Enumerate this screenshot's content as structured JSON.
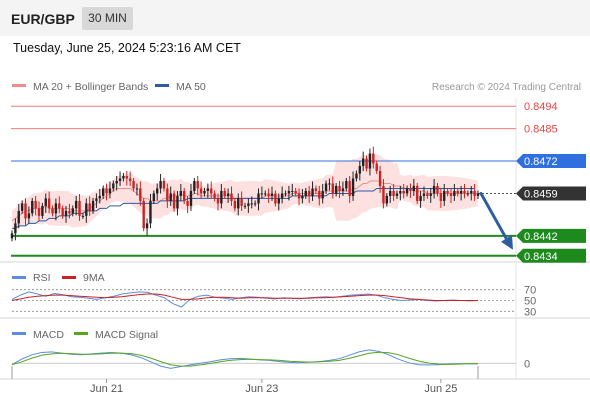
{
  "header": {
    "symbol": "EUR/GBP",
    "interval": "30 MIN"
  },
  "timestamp": "Tuesday, June 25, 2024 5:23:16 AM CET",
  "source": "Research © 2024 Trading Central",
  "colors": {
    "ma20": "#f08c8c",
    "ma50": "#2d5aa0",
    "bollinger": "#fde0e0",
    "resistance": "#ee4444",
    "pivot": "#2f6fe0",
    "support": "#1e8a1e",
    "last_price": "#333333",
    "candle_up": "#222222",
    "candle_down": "#cc2222",
    "rsi": "#5b8de0",
    "rsi_ma": "#cc2222",
    "macd": "#5b8de0",
    "macd_signal": "#56a520",
    "arrow": "#2d5fa0"
  },
  "chart_data": [
    {
      "type": "line",
      "panel": "price",
      "legend_position": "top-left",
      "legend": [
        {
          "label": "MA 20 + Bollinger Bands",
          "color": "#f08c8c"
        },
        {
          "label": "MA 50",
          "color": "#2d5aa0"
        }
      ],
      "x_ticks": [
        "Jun 21",
        "Jun 23",
        "Jun 25"
      ],
      "x_tick_index": [
        28,
        74,
        127
      ],
      "ylim": [
        0.84315,
        0.84985
      ],
      "levels": [
        {
          "value": 0.8494,
          "label": "0.8494",
          "kind": "resistance"
        },
        {
          "value": 0.8485,
          "label": "0.8485",
          "kind": "resistance"
        },
        {
          "value": 0.8472,
          "label": "0.8472",
          "kind": "pivot"
        },
        {
          "value": 0.8442,
          "label": "0.8442",
          "kind": "support"
        },
        {
          "value": 0.8434,
          "label": "0.8434",
          "kind": "support"
        }
      ],
      "last_price": {
        "value": 0.8459,
        "label": "0.8459"
      },
      "forecast": {
        "from": 0.8459,
        "to": 0.8438,
        "direction": "down"
      },
      "series": [
        {
          "name": "Price",
          "values": [
            0.8443,
            0.8447,
            0.8452,
            0.8455,
            0.8449,
            0.8451,
            0.8456,
            0.8453,
            0.845,
            0.8454,
            0.8457,
            0.8453,
            0.8451,
            0.8455,
            0.8453,
            0.845,
            0.8452,
            0.8451,
            0.8453,
            0.8456,
            0.845,
            0.845,
            0.8455,
            0.8452,
            0.8456,
            0.8457,
            0.8458,
            0.8461,
            0.8459,
            0.8461,
            0.8463,
            0.8464,
            0.8465,
            0.8466,
            0.8465,
            0.8464,
            0.8461,
            0.8461,
            0.8456,
            0.8445,
            0.8447,
            0.8456,
            0.8459,
            0.8461,
            0.8464,
            0.8461,
            0.8456,
            0.8459,
            0.8453,
            0.8458,
            0.846,
            0.8456,
            0.8454,
            0.846,
            0.8464,
            0.8461,
            0.8459,
            0.846,
            0.8461,
            0.8459,
            0.8457,
            0.8455,
            0.846,
            0.8458,
            0.8459,
            0.8456,
            0.8453,
            0.8457,
            0.8454,
            0.8454,
            0.8455,
            0.8455,
            0.8455,
            0.8459,
            0.8459,
            0.8459,
            0.8458,
            0.8459,
            0.8455,
            0.8457,
            0.8459,
            0.8459,
            0.846,
            0.846,
            0.8459,
            0.8457,
            0.8458,
            0.846,
            0.8458,
            0.8461,
            0.846,
            0.8457,
            0.846,
            0.8463,
            0.8463,
            0.8459,
            0.8462,
            0.846,
            0.8461,
            0.8464,
            0.8458,
            0.8465,
            0.8467,
            0.847,
            0.8473,
            0.8469,
            0.8475,
            0.8471,
            0.8468,
            0.8462,
            0.8455,
            0.8458,
            0.846,
            0.8458,
            0.8459,
            0.846,
            0.8459,
            0.8461,
            0.846,
            0.8462,
            0.8456,
            0.8458,
            0.8459,
            0.8458,
            0.8459,
            0.8462,
            0.8459,
            0.8456,
            0.846,
            0.8459,
            0.8458,
            0.846,
            0.8459,
            0.846,
            0.8459,
            0.8459,
            0.846,
            0.8458,
            0.8459
          ],
          "color": "#222222"
        },
        {
          "name": "MA 20",
          "values": [
            0.8448,
            0.8449,
            0.845,
            0.8451,
            0.8452,
            0.8452,
            0.8453,
            0.8453,
            0.8453,
            0.8453,
            0.8454,
            0.8453,
            0.8453,
            0.8453,
            0.8453,
            0.8453,
            0.8453,
            0.8453,
            0.8452,
            0.8452,
            0.8452,
            0.8452,
            0.8452,
            0.8453,
            0.8454,
            0.8455,
            0.8456,
            0.8457,
            0.8458,
            0.8459,
            0.846,
            0.8461,
            0.8461,
            0.8461,
            0.8461,
            0.8461,
            0.846,
            0.8459,
            0.8458,
            0.8457,
            0.8457,
            0.8456,
            0.8456,
            0.8456,
            0.8456,
            0.8457,
            0.8457,
            0.8458,
            0.8458,
            0.8458,
            0.8459,
            0.8458,
            0.8458,
            0.8458,
            0.8459,
            0.8459,
            0.8458,
            0.8458,
            0.8458,
            0.8458,
            0.8458,
            0.8458,
            0.8458,
            0.8458,
            0.8458,
            0.8458,
            0.8457,
            0.8457,
            0.8457,
            0.8457,
            0.8457,
            0.8457,
            0.8457,
            0.8457,
            0.8457,
            0.8458,
            0.8458,
            0.8458,
            0.8458,
            0.8458,
            0.8458,
            0.8458,
            0.8458,
            0.8459,
            0.8459,
            0.8459,
            0.8459,
            0.8459,
            0.8459,
            0.8459,
            0.8459,
            0.8459,
            0.8459,
            0.846,
            0.846,
            0.846,
            0.846,
            0.846,
            0.846,
            0.846,
            0.846,
            0.8461,
            0.8461,
            0.8462,
            0.8463,
            0.8463,
            0.8464,
            0.8464,
            0.8464,
            0.8464,
            0.8463,
            0.8463,
            0.8463,
            0.8462,
            0.8462,
            0.8462,
            0.8461,
            0.8461,
            0.8461,
            0.846,
            0.846,
            0.846,
            0.846,
            0.8459,
            0.8459,
            0.8459,
            0.8459,
            0.8459,
            0.8459,
            0.8459,
            0.8459,
            0.8459,
            0.8459,
            0.8459,
            0.8459,
            0.8459,
            0.8459,
            0.8459,
            0.8459
          ],
          "color": "#f08c8c"
        },
        {
          "name": "MA 50",
          "values": [
            0.8445,
            0.8445,
            0.8446,
            0.8446,
            0.8446,
            0.8447,
            0.8447,
            0.8447,
            0.8448,
            0.8448,
            0.8448,
            0.8449,
            0.8449,
            0.8449,
            0.845,
            0.845,
            0.845,
            0.845,
            0.8451,
            0.8451,
            0.8451,
            0.8451,
            0.8452,
            0.8452,
            0.8452,
            0.8452,
            0.8453,
            0.8453,
            0.8453,
            0.8454,
            0.8454,
            0.8454,
            0.8454,
            0.8455,
            0.8455,
            0.8455,
            0.8455,
            0.8455,
            0.8455,
            0.8455,
            0.8455,
            0.8455,
            0.8455,
            0.8455,
            0.8456,
            0.8456,
            0.8456,
            0.8456,
            0.8456,
            0.8456,
            0.8456,
            0.8456,
            0.8457,
            0.8457,
            0.8457,
            0.8457,
            0.8457,
            0.8457,
            0.8457,
            0.8457,
            0.8457,
            0.8457,
            0.8457,
            0.8457,
            0.8457,
            0.8457,
            0.8457,
            0.8457,
            0.8457,
            0.8457,
            0.8457,
            0.8457,
            0.8457,
            0.8457,
            0.8457,
            0.8457,
            0.8457,
            0.8457,
            0.8457,
            0.8457,
            0.8457,
            0.8457,
            0.8457,
            0.8458,
            0.8458,
            0.8458,
            0.8458,
            0.8458,
            0.8458,
            0.8458,
            0.8458,
            0.8458,
            0.8458,
            0.8458,
            0.8459,
            0.8459,
            0.8459,
            0.8459,
            0.8459,
            0.8459,
            0.8459,
            0.8459,
            0.846,
            0.846,
            0.846,
            0.846,
            0.846,
            0.846,
            0.8461,
            0.8461,
            0.8461,
            0.8461,
            0.8461,
            0.8461,
            0.8461,
            0.8461,
            0.8461,
            0.8461,
            0.8461,
            0.8461,
            0.8461,
            0.8461,
            0.8461,
            0.8461,
            0.8461,
            0.8461,
            0.8461,
            0.8461,
            0.8461,
            0.8461,
            0.8461,
            0.8461,
            0.8461,
            0.8461,
            0.8461,
            0.8461,
            0.8461,
            0.8461
          ],
          "color": "#2d5aa0"
        }
      ]
    },
    {
      "type": "line",
      "panel": "rsi",
      "legend": [
        {
          "label": "RSI",
          "color": "#5b8de0"
        },
        {
          "label": "9MA",
          "color": "#cc2222"
        }
      ],
      "ylim": [
        25,
        75
      ],
      "levels": [
        70,
        50,
        30
      ],
      "level_labels": [
        "70",
        "50",
        "30"
      ],
      "series": [
        {
          "name": "RSI",
          "wave": [
            52,
            60,
            66,
            62,
            58,
            63,
            61,
            57,
            56,
            54,
            52,
            55,
            58,
            62,
            64,
            66,
            65,
            60,
            55,
            44,
            38,
            52,
            58,
            60,
            56,
            54,
            52,
            55,
            57,
            56,
            54,
            53,
            55,
            54,
            53,
            55,
            56,
            57,
            56,
            58,
            60,
            61,
            62,
            60,
            55,
            52,
            50,
            51,
            52,
            50,
            49,
            50,
            51,
            50,
            49,
            50
          ]
        },
        {
          "name": "9MA",
          "wave": [
            50,
            53,
            56,
            58,
            59,
            60,
            60,
            59,
            58,
            57,
            56,
            55,
            56,
            57,
            59,
            61,
            62,
            62,
            60,
            56,
            52,
            52,
            53,
            55,
            56,
            56,
            55,
            54,
            55,
            55,
            55,
            54,
            54,
            54,
            54,
            54,
            55,
            55,
            56,
            57,
            58,
            59,
            60,
            60,
            59,
            57,
            55,
            53,
            52,
            51,
            50,
            50,
            50,
            50,
            50,
            50
          ]
        }
      ]
    },
    {
      "type": "line",
      "panel": "macd",
      "legend": [
        {
          "label": "MACD",
          "color": "#5b8de0"
        },
        {
          "label": "MACD Signal",
          "color": "#56a520"
        }
      ],
      "ylim": [
        -0.45,
        0.75
      ],
      "zero_label": "0",
      "series": [
        {
          "name": "MACD",
          "wave": [
            -0.05,
            0.15,
            0.3,
            0.38,
            0.4,
            0.36,
            0.32,
            0.3,
            0.33,
            0.36,
            0.38,
            0.36,
            0.3,
            0.2,
            0.05,
            -0.1,
            -0.18,
            -0.12,
            -0.05,
            0.0,
            0.05,
            0.12,
            0.16,
            0.17,
            0.15,
            0.12,
            0.1,
            0.06,
            0.03,
            0.02,
            0.04,
            0.06,
            0.1,
            0.16,
            0.28,
            0.4,
            0.47,
            0.42,
            0.3,
            0.14,
            0.02,
            -0.05,
            -0.06,
            -0.05,
            -0.03,
            -0.02,
            -0.02,
            -0.02
          ]
        },
        {
          "name": "MACD Signal",
          "wave": [
            -0.05,
            0.05,
            0.18,
            0.28,
            0.33,
            0.35,
            0.34,
            0.32,
            0.32,
            0.33,
            0.35,
            0.36,
            0.34,
            0.28,
            0.18,
            0.06,
            -0.05,
            -0.1,
            -0.1,
            -0.06,
            -0.01,
            0.05,
            0.1,
            0.13,
            0.14,
            0.13,
            0.12,
            0.1,
            0.07,
            0.05,
            0.04,
            0.05,
            0.07,
            0.1,
            0.17,
            0.26,
            0.35,
            0.39,
            0.37,
            0.3,
            0.18,
            0.08,
            0.01,
            -0.03,
            -0.04,
            -0.03,
            -0.02,
            -0.02
          ]
        }
      ]
    }
  ]
}
